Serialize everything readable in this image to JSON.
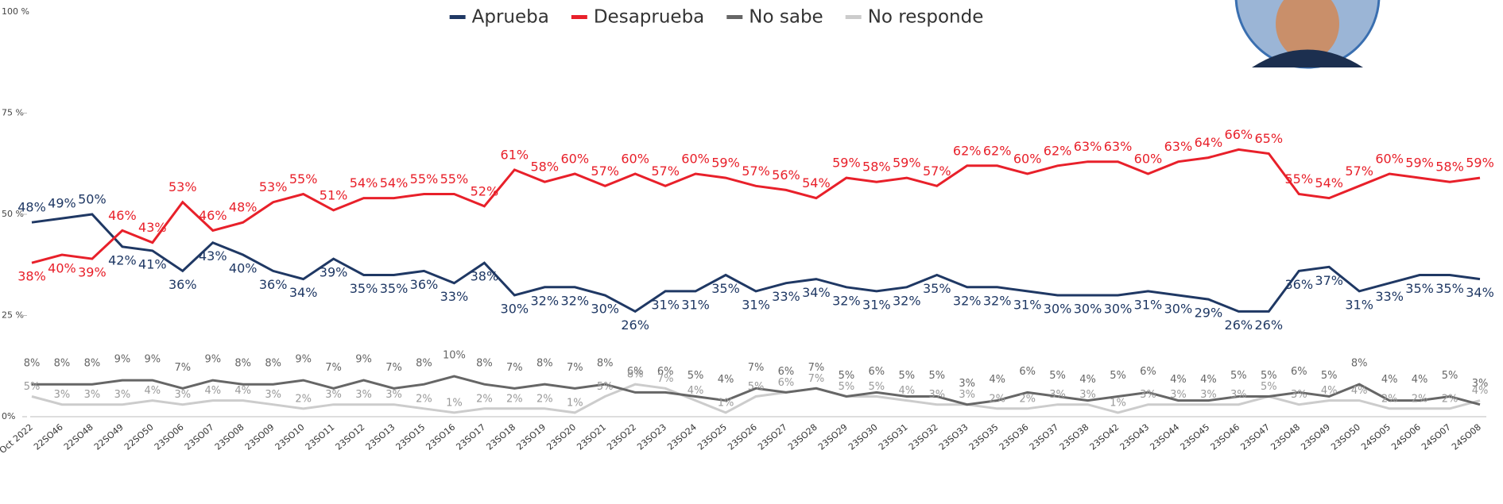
{
  "chart_data": {
    "type": "line",
    "legend": "top",
    "grid": false,
    "categories": [
      "Oct 2022",
      "22SO46",
      "22SO48",
      "22SO49",
      "22SO50",
      "23SO06",
      "23SO07",
      "23SO08",
      "23SO09",
      "23SO10",
      "23SO11",
      "23SO12",
      "23SO13",
      "23SO15",
      "23SO16",
      "23SO17",
      "23SO18",
      "23SO19",
      "23SO20",
      "23SO21",
      "23SO22",
      "23SO23",
      "23SO24",
      "23SO25",
      "23SO26",
      "23SO27",
      "23SO28",
      "23SO29",
      "23SO30",
      "23SO31",
      "23SO32",
      "23SO33",
      "23SO35",
      "23SO36",
      "23SO37",
      "23SO38",
      "23SO42",
      "23SO43",
      "23SO44",
      "23SO45",
      "23SO46",
      "23SO47",
      "23SO48",
      "23SO49",
      "23SO50",
      "24SO05",
      "24SO06",
      "24SO07",
      "24SO08"
    ],
    "ylim": [
      0,
      100
    ],
    "yticks": [
      {
        "value": 0,
        "label": "0%"
      },
      {
        "value": 25,
        "label": "25 %"
      },
      {
        "value": 50,
        "label": "50 %"
      },
      {
        "value": 75,
        "label": "75 %"
      },
      {
        "value": 100,
        "label": "100 %"
      }
    ],
    "series": [
      {
        "name": "Aprueba",
        "color": "#1f3864",
        "values": [
          48,
          49,
          50,
          42,
          41,
          36,
          43,
          40,
          36,
          34,
          39,
          35,
          35,
          36,
          33,
          38,
          30,
          32,
          32,
          30,
          26,
          31,
          31,
          35,
          31,
          33,
          34,
          32,
          31,
          32,
          35,
          32,
          32,
          31,
          30,
          30,
          30,
          31,
          30,
          29,
          26,
          26,
          36,
          37,
          31,
          33,
          35,
          35,
          34
        ],
        "value_labels": [
          "48%",
          "49%",
          "50%",
          "42%",
          "41%",
          "36%",
          "43%",
          "40%",
          "36%",
          "34%",
          "39%",
          "35%",
          "35%",
          "36%",
          "33%",
          "38%",
          "30%",
          "32%",
          "32%",
          "30%",
          "26%",
          "31%",
          "31%",
          "35%",
          "31%",
          "33%",
          "34%",
          "32%",
          "31%",
          "32%",
          "35%",
          "32%",
          "32%",
          "31%",
          "30%",
          "30%",
          "30%",
          "31%",
          "30%",
          "29%",
          "26%",
          "26%",
          "36%",
          "37%",
          "31%",
          "33%",
          "35%",
          "35%",
          "34%"
        ]
      },
      {
        "name": "Desaprueba",
        "color": "#e8202a",
        "values": [
          38,
          40,
          39,
          46,
          43,
          53,
          46,
          48,
          53,
          55,
          51,
          54,
          54,
          55,
          55,
          52,
          61,
          58,
          60,
          57,
          60,
          57,
          60,
          59,
          57,
          56,
          54,
          59,
          58,
          59,
          57,
          62,
          62,
          60,
          62,
          63,
          63,
          60,
          63,
          64,
          66,
          65,
          55,
          54,
          57,
          60,
          59,
          58,
          59
        ],
        "value_labels": [
          "38%",
          "40%",
          "39%",
          "46%",
          "43%",
          "53%",
          "46%",
          "48%",
          "53%",
          "55%",
          "51%",
          "54%",
          "54%",
          "55%",
          "55%",
          "52%",
          "61%",
          "58%",
          "60%",
          "57%",
          "60%",
          "57%",
          "60%",
          "59%",
          "57%",
          "56%",
          "54%",
          "59%",
          "58%",
          "59%",
          "57%",
          "62%",
          "62%",
          "60%",
          "62%",
          "63%",
          "63%",
          "60%",
          "63%",
          "64%",
          "66%",
          "65%",
          "55%",
          "54%",
          "57%",
          "60%",
          "59%",
          "58%",
          "59%"
        ]
      },
      {
        "name": "No sabe",
        "color": "#666666",
        "values": [
          8,
          8,
          8,
          9,
          9,
          7,
          9,
          8,
          8,
          9,
          7,
          9,
          7,
          8,
          10,
          8,
          7,
          8,
          7,
          8,
          6,
          6,
          5,
          4,
          7,
          6,
          7,
          5,
          6,
          5,
          5,
          3,
          4,
          6,
          5,
          4,
          5,
          6,
          4,
          4,
          5,
          5,
          6,
          5,
          8,
          4,
          4,
          5,
          3
        ],
        "value_labels": [
          "8%",
          "8%",
          "8%",
          "9%",
          "9%",
          "7%",
          "9%",
          "8%",
          "8%",
          "9%",
          "7%",
          "9%",
          "7%",
          "8%",
          "10%",
          "8%",
          "7%",
          "8%",
          "7%",
          "8%",
          "6%",
          "6%",
          "5%",
          "4%",
          "7%",
          "6%",
          "7%",
          "5%",
          "6%",
          "5%",
          "5%",
          "3%",
          "4%",
          "6%",
          "5%",
          "4%",
          "5%",
          "6%",
          "4%",
          "4%",
          "5%",
          "5%",
          "6%",
          "5%",
          "8%",
          "4%",
          "4%",
          "5%",
          "3%"
        ]
      },
      {
        "name": "No responde",
        "color": "#cccccc",
        "values": [
          5,
          3,
          3,
          3,
          4,
          3,
          4,
          4,
          3,
          2,
          3,
          3,
          3,
          2,
          1,
          2,
          2,
          2,
          1,
          5,
          8,
          7,
          4,
          1,
          5,
          6,
          7,
          5,
          5,
          4,
          3,
          3,
          2,
          2,
          3,
          3,
          1,
          3,
          3,
          3,
          3,
          5,
          3,
          4,
          4,
          2,
          2,
          2,
          4
        ],
        "value_labels": [
          "5%",
          "3%",
          "3%",
          "3%",
          "4%",
          "3%",
          "4%",
          "4%",
          "3%",
          "2%",
          "3%",
          "3%",
          "3%",
          "2%",
          "1%",
          "2%",
          "2%",
          "2%",
          "1%",
          "5%",
          "8%",
          "7%",
          "4%",
          "1%",
          "5%",
          "6%",
          "7%",
          "5%",
          "5%",
          "4%",
          "3%",
          "3%",
          "2%",
          "2%",
          "3%",
          "3%",
          "1%",
          "3%",
          "3%",
          "3%",
          "3%",
          "5%",
          "3%",
          "4%",
          "4%",
          "2%",
          "2%",
          "2%",
          "4%"
        ]
      }
    ]
  }
}
